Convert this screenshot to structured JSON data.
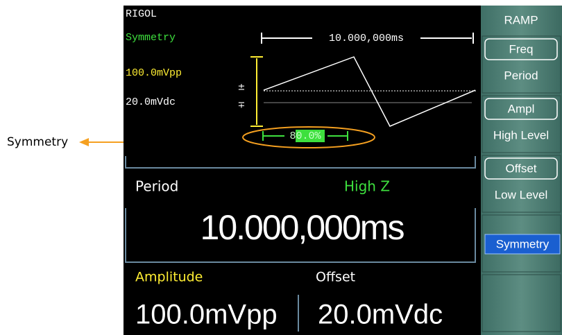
{
  "callout": "Symmetry",
  "screen": {
    "brand": "RIGOL",
    "mode": "Symmetry",
    "period_marker": "10.000,000ms",
    "amplitude_small": "100.0mVpp",
    "offset_small": "20.0mVdc",
    "symmetry_value": "80.0%",
    "param_label": "Period",
    "impedance": "High Z",
    "param_value": "10.000,000ms",
    "amplitude_label": "Amplitude",
    "offset_label": "Offset",
    "amplitude_value": "100.0mVpp",
    "offset_value": "20.0mVdc"
  },
  "menu": {
    "title": "RAMP",
    "items": [
      {
        "top": "Freq",
        "bottom": "Period"
      },
      {
        "top": "Ampl",
        "bottom": "High Level"
      },
      {
        "top": "Offset",
        "bottom": "Low Level"
      },
      {
        "top": "Symmetry"
      },
      {}
    ]
  }
}
